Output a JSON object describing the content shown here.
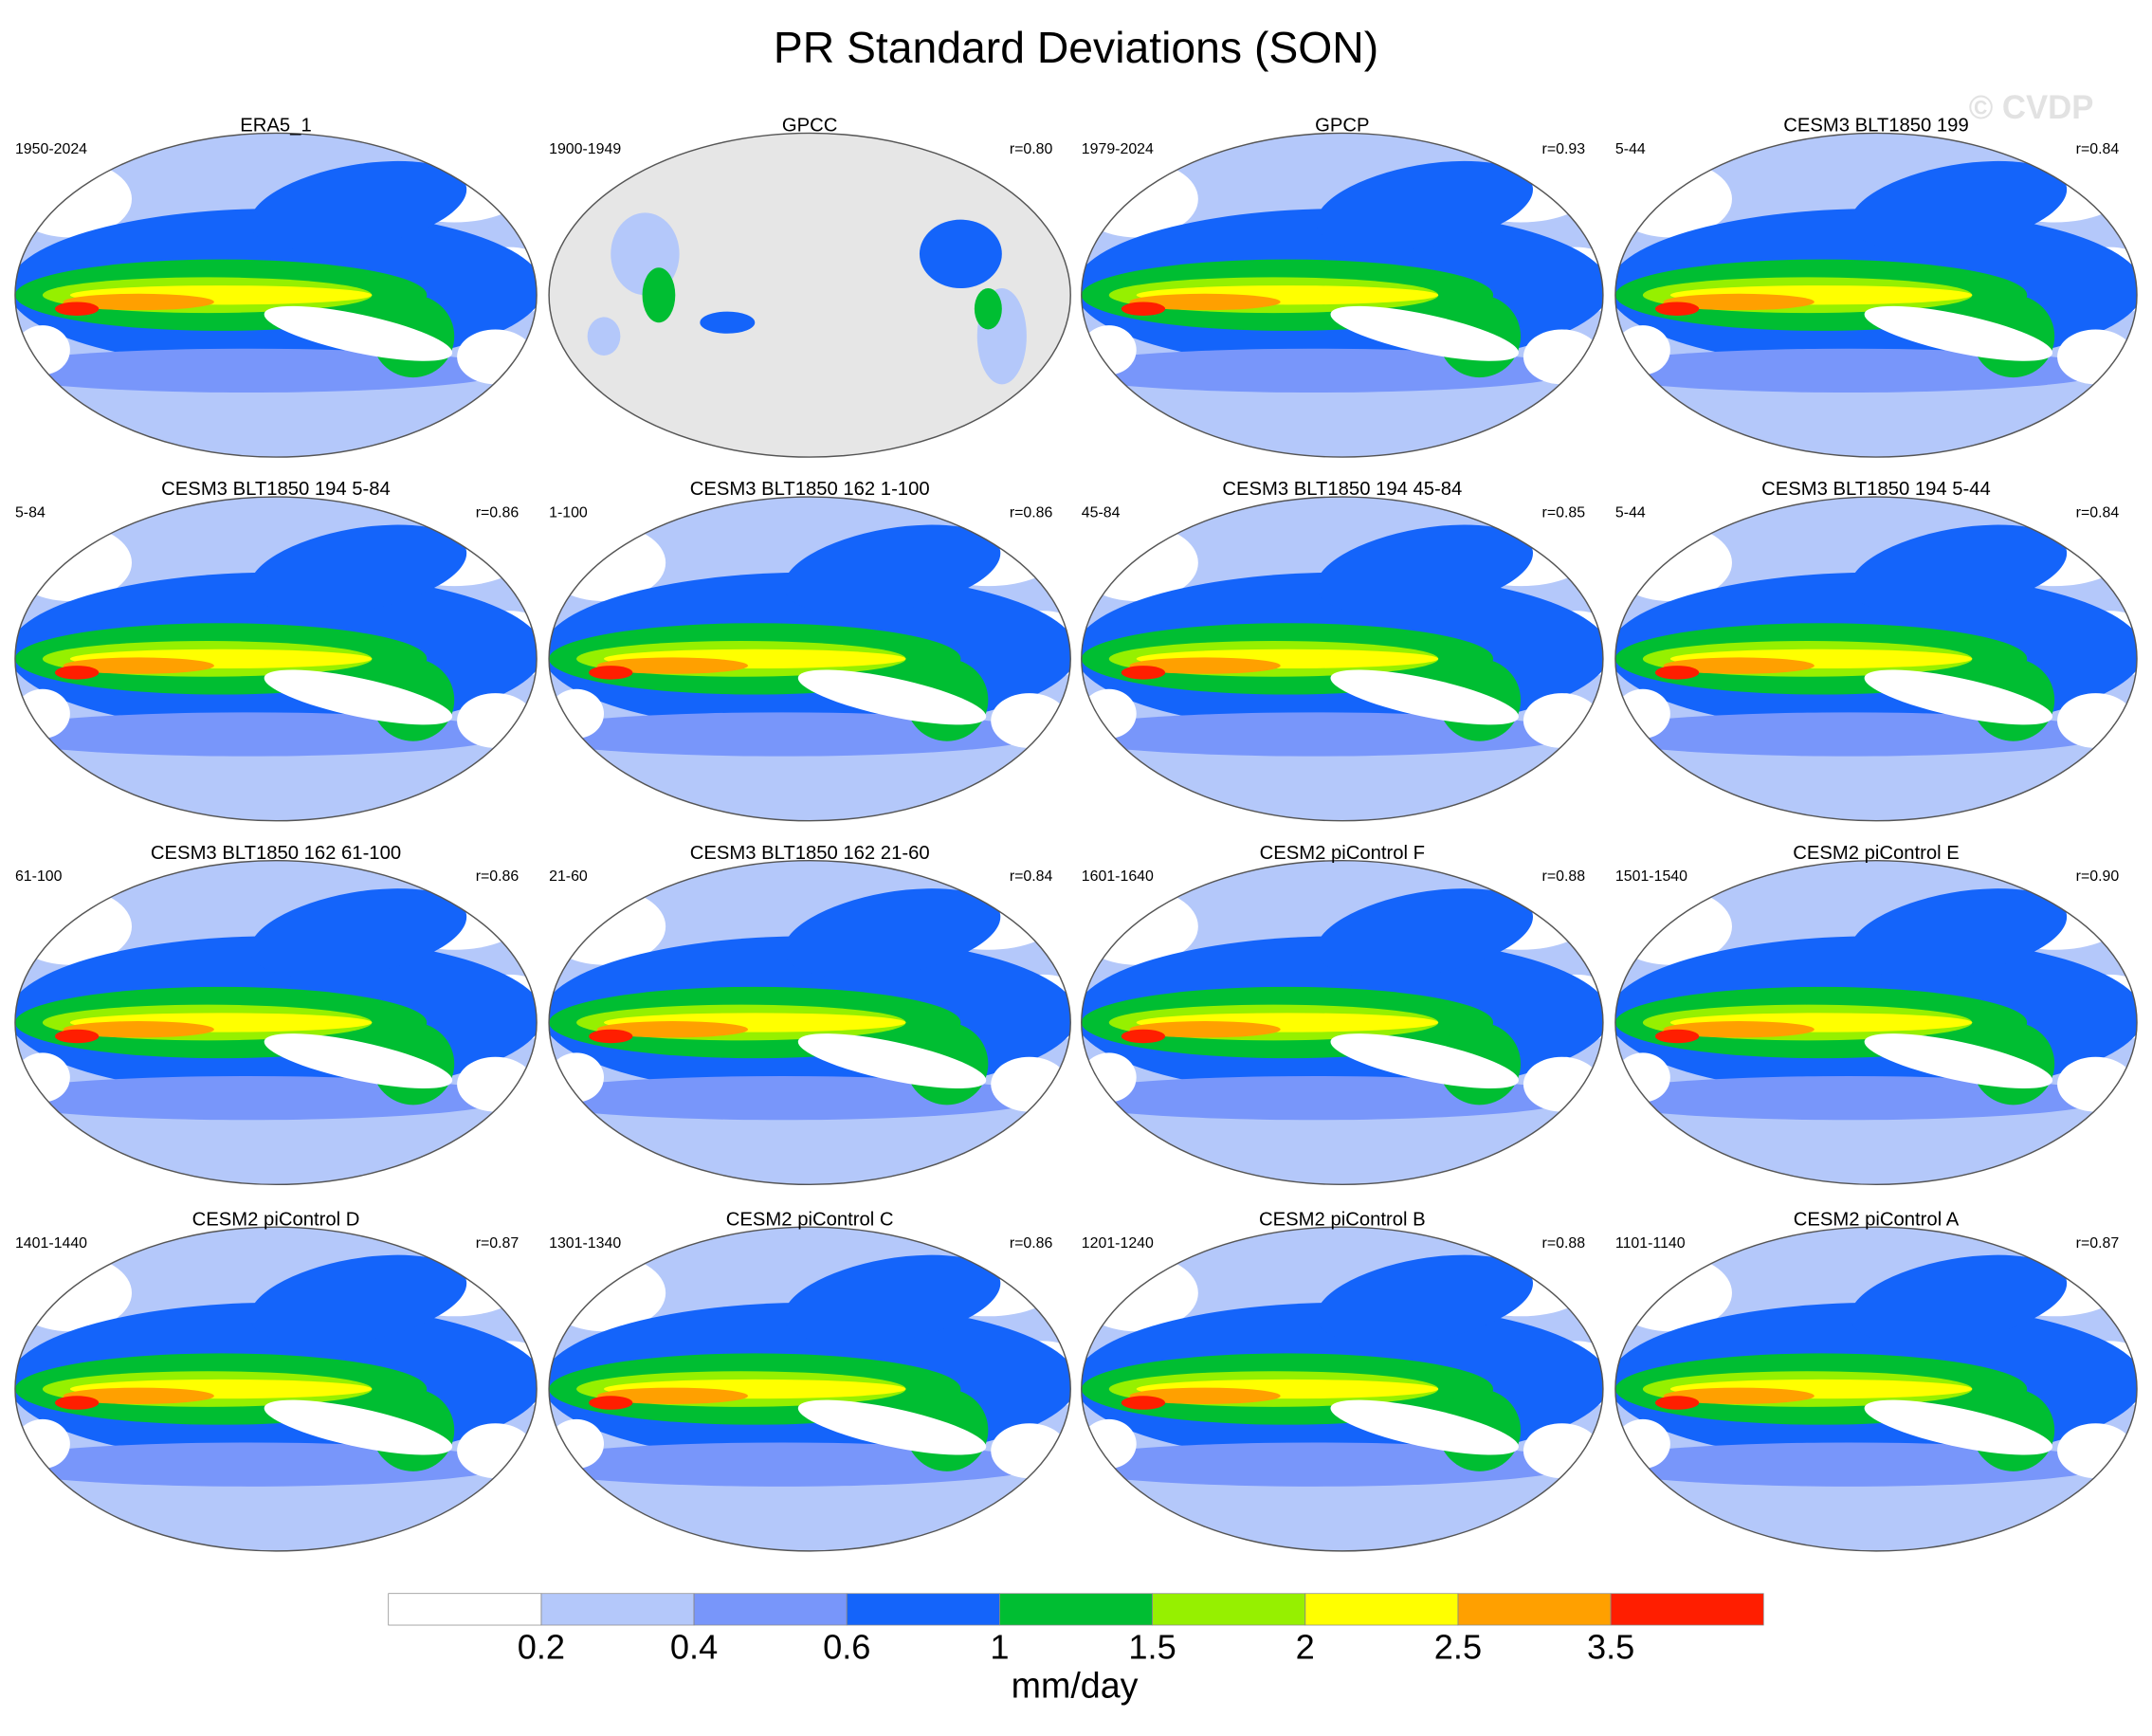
{
  "title": "PR Standard Deviations (SON)",
  "watermark": "© CVDP",
  "panels": [
    {
      "title": "ERA5_1",
      "period": "1950-2024"
    },
    {
      "title": "GPCC",
      "period": "1900-1949",
      "r": "r=0.80",
      "masked": true
    },
    {
      "title": "GPCP",
      "period": "1979-2024",
      "r": "r=0.93"
    },
    {
      "title": "CESM3 BLT1850 199",
      "period": "5-44",
      "r": "r=0.84"
    },
    {
      "title": "CESM3 BLT1850 194 5-84",
      "period": "5-84",
      "r": "r=0.86"
    },
    {
      "title": "CESM3 BLT1850 162 1-100",
      "period": "1-100",
      "r": "r=0.86"
    },
    {
      "title": "CESM3 BLT1850 194 45-84",
      "period": "45-84",
      "r": "r=0.85"
    },
    {
      "title": "CESM3 BLT1850 194 5-44",
      "period": "5-44",
      "r": "r=0.84"
    },
    {
      "title": "CESM3 BLT1850 162 61-100",
      "period": "61-100",
      "r": "r=0.86"
    },
    {
      "title": "CESM3 BLT1850 162 21-60",
      "period": "21-60",
      "r": "r=0.84"
    },
    {
      "title": "CESM2 piControl F",
      "period": "1601-1640",
      "r": "r=0.88"
    },
    {
      "title": "CESM2 piControl E",
      "period": "1501-1540",
      "r": "r=0.90"
    },
    {
      "title": "CESM2 piControl D",
      "period": "1401-1440",
      "r": "r=0.87"
    },
    {
      "title": "CESM2 piControl C",
      "period": "1301-1340",
      "r": "r=0.86"
    },
    {
      "title": "CESM2 piControl B",
      "period": "1201-1240",
      "r": "r=0.88"
    },
    {
      "title": "CESM2 piControl A",
      "period": "1101-1140",
      "r": "r=0.87"
    }
  ],
  "colorbar": {
    "colors": [
      "#ffffff",
      "#b4c8fa",
      "#7896fa",
      "#1464fa",
      "#00be32",
      "#96f000",
      "#ffff00",
      "#ffa000",
      "#ff1e00"
    ],
    "ticks": [
      0.2,
      0.4,
      0.6,
      1,
      1.5,
      2,
      2.5,
      3.5
    ],
    "units": "mm/day"
  }
}
